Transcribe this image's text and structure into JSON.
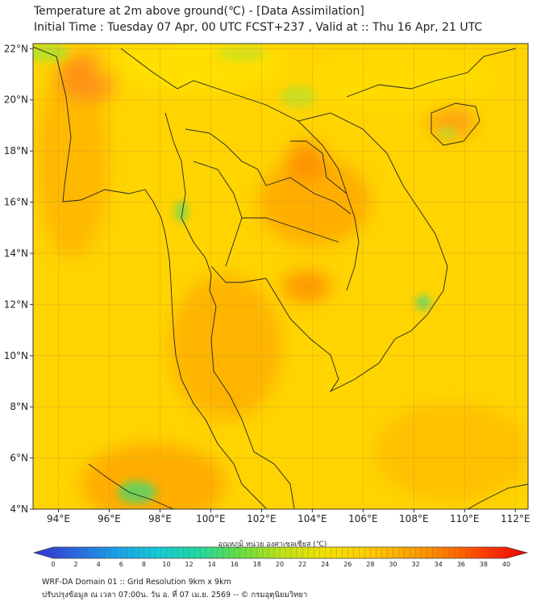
{
  "title": {
    "line1": "Temperature at 2m above ground(℃) - [Data Assimilation]",
    "line2": "Initial Time : Tuesday 07 Apr, 00 UTC FCST+237 , Valid at :: Thu 16 Apr, 21 UTC"
  },
  "map": {
    "lon_range": [
      93,
      112.5
    ],
    "lat_range": [
      4,
      22.2
    ],
    "lon_ticks": [
      "94°E",
      "96°E",
      "98°E",
      "100°E",
      "102°E",
      "104°E",
      "106°E",
      "108°E",
      "110°E",
      "112°E"
    ],
    "lat_ticks": [
      "4°N",
      "6°N",
      "8°N",
      "10°N",
      "12°N",
      "14°N",
      "16°N",
      "18°N",
      "20°N",
      "22°N"
    ],
    "gridlines": true,
    "background_color": "#ffd400"
  },
  "colorbar": {
    "title": "อุณหภูมิ หน่วย องศาเซลเซียส (℃)",
    "tick_labels": [
      "0",
      "2",
      "4",
      "6",
      "8",
      "10",
      "12",
      "14",
      "16",
      "18",
      "20",
      "22",
      "24",
      "26",
      "28",
      "30",
      "32",
      "34",
      "36",
      "38",
      "40"
    ],
    "range": [
      0,
      40
    ],
    "colors": [
      "#3333cc",
      "#2a66e0",
      "#1aa0e8",
      "#14c8d8",
      "#20d8a0",
      "#66dd44",
      "#bbe21a",
      "#f0e000",
      "#ffd000",
      "#ffaa00",
      "#ff7a00",
      "#ff3a00",
      "#ee0000"
    ]
  },
  "footer": {
    "line1": "WRF-DA Domain 01 :: Grid Resolution 9km x 9km",
    "line2": "ปรับปรุงข้อมูล ณ เวลา 07:00น. วัน อ. ที่ 07 เม.ย. 2569 -- © กรมอุตุนิยมวิทยา"
  }
}
